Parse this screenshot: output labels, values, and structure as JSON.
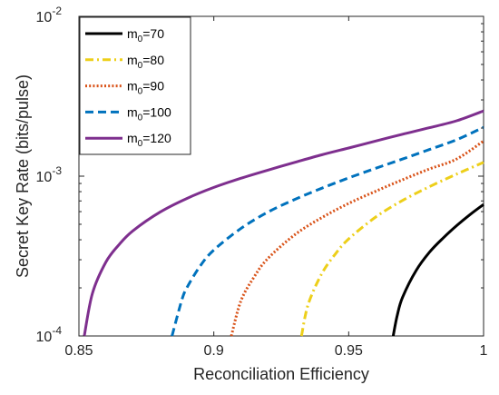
{
  "chart_data": {
    "type": "line",
    "xlabel": "Reconciliation Efficiency",
    "ylabel": "Secret Key Rate (bits/pulse)",
    "xlim": [
      0.85,
      1.0
    ],
    "ylim": [
      0.0001,
      0.01
    ],
    "yscale": "log",
    "grid": false,
    "legend_position": "top-left",
    "x_ticks": [
      {
        "value": 0.85,
        "label": "0.85"
      },
      {
        "value": 0.9,
        "label": "0.9"
      },
      {
        "value": 0.95,
        "label": "0.95"
      },
      {
        "value": 1.0,
        "label": "1"
      }
    ],
    "y_ticks": [
      {
        "value": 0.0001,
        "base": "10",
        "exp": "-4"
      },
      {
        "value": 0.001,
        "base": "10",
        "exp": "-3"
      },
      {
        "value": 0.01,
        "base": "10",
        "exp": "-2"
      }
    ],
    "series": [
      {
        "name_main": "m",
        "name_sub": "0",
        "name_rest": "=70",
        "color": "#000000",
        "dash": "solid",
        "x": [
          0.9665,
          0.968,
          0.97,
          0.975,
          0.98,
          0.985,
          0.99,
          0.995,
          1.0
        ],
        "y": [
          0.0001,
          0.000135,
          0.000175,
          0.000257,
          0.000335,
          0.00041,
          0.00049,
          0.000575,
          0.000665
        ]
      },
      {
        "name_main": "m",
        "name_sub": "0",
        "name_rest": "=80",
        "color": "#EDCF1A",
        "dash": "dashdot",
        "x": [
          0.9325,
          0.935,
          0.94,
          0.945,
          0.95,
          0.96,
          0.97,
          0.98,
          0.99,
          1.0
        ],
        "y": [
          0.0001,
          0.000158,
          0.000245,
          0.000325,
          0.000405,
          0.000555,
          0.000705,
          0.00086,
          0.00103,
          0.00122
        ]
      },
      {
        "name_main": "m",
        "name_sub": "0",
        "name_rest": "=90",
        "color": "#D95319",
        "dash": "dotted",
        "x": [
          0.9065,
          0.91,
          0.915,
          0.92,
          0.93,
          0.94,
          0.95,
          0.96,
          0.97,
          0.98,
          0.99,
          1.0
        ],
        "y": [
          0.0001,
          0.000165,
          0.000235,
          0.000305,
          0.00043,
          0.00055,
          0.000675,
          0.000805,
          0.00095,
          0.00111,
          0.00128,
          0.00166
        ]
      },
      {
        "name_main": "m",
        "name_sub": "0",
        "name_rest": "=100",
        "color": "#0072BD",
        "dash": "dashed",
        "x": [
          0.8845,
          0.888,
          0.89,
          0.895,
          0.9,
          0.91,
          0.92,
          0.93,
          0.94,
          0.95,
          0.96,
          0.97,
          0.98,
          0.99,
          1.0
        ],
        "y": [
          0.0001,
          0.000165,
          0.0002,
          0.000275,
          0.000345,
          0.00047,
          0.000595,
          0.000715,
          0.00084,
          0.000975,
          0.00112,
          0.00128,
          0.00147,
          0.00169,
          0.00202
        ]
      },
      {
        "name_main": "m",
        "name_sub": "0",
        "name_rest": "=120",
        "color": "#7E2F8E",
        "dash": "solid",
        "x": [
          0.852,
          0.855,
          0.86,
          0.865,
          0.87,
          0.88,
          0.89,
          0.9,
          0.91,
          0.92,
          0.93,
          0.94,
          0.95,
          0.96,
          0.97,
          0.98,
          0.99,
          1.0
        ],
        "y": [
          0.0001,
          0.000185,
          0.00029,
          0.000375,
          0.000455,
          0.000595,
          0.000725,
          0.00085,
          0.00097,
          0.00109,
          0.00122,
          0.00136,
          0.0015,
          0.00166,
          0.00183,
          0.00201,
          0.00222,
          0.00256
        ]
      }
    ]
  }
}
